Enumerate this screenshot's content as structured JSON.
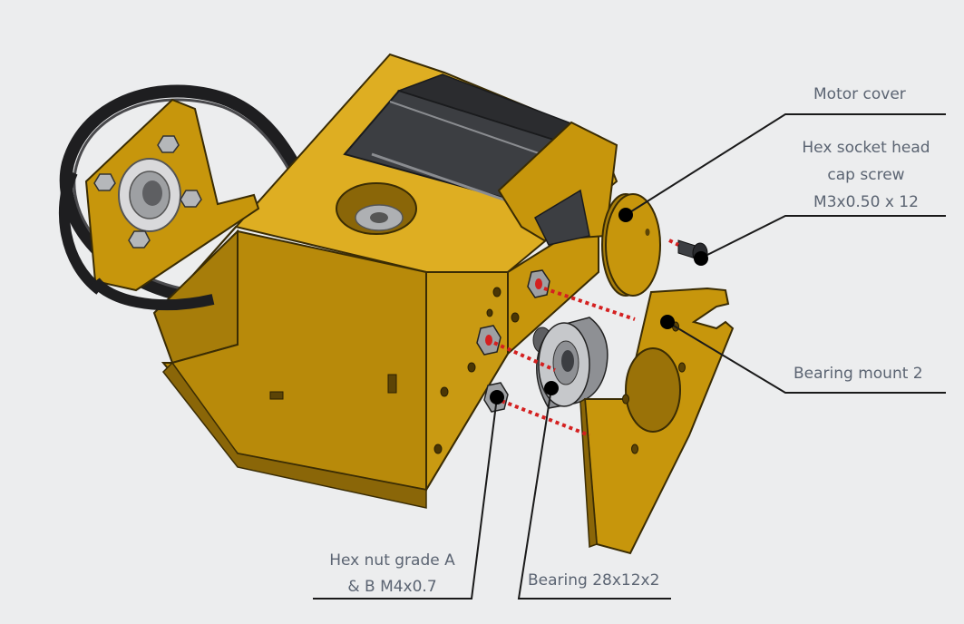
{
  "labels": {
    "motor_cover": "Motor cover",
    "screw_line1": "Hex socket head",
    "screw_line2": "cap screw",
    "screw_line3": "M3x0.50 x 12",
    "bearing_mount": "Bearing mount 2",
    "hex_nut_line1": "Hex nut grade A",
    "hex_nut_line2": "& B M4x0.7",
    "bearing": "Bearing 28x12x2"
  },
  "colors": {
    "background": "#ecedee",
    "part_body": "#c7960c",
    "part_shadow": "#8a6608",
    "part_light": "#deae22",
    "motor": "#3c3e42",
    "belt": "#1e1e20",
    "metal": "#aeb0b3",
    "callout_line": "#1a1a1a",
    "callout_dot": "#000000",
    "dotted_guide": "#d42020",
    "label_text": "#5b6472"
  },
  "icons": [
    "callout-dot-icon",
    "hex-nut-icon",
    "bearing-icon",
    "screw-icon"
  ]
}
